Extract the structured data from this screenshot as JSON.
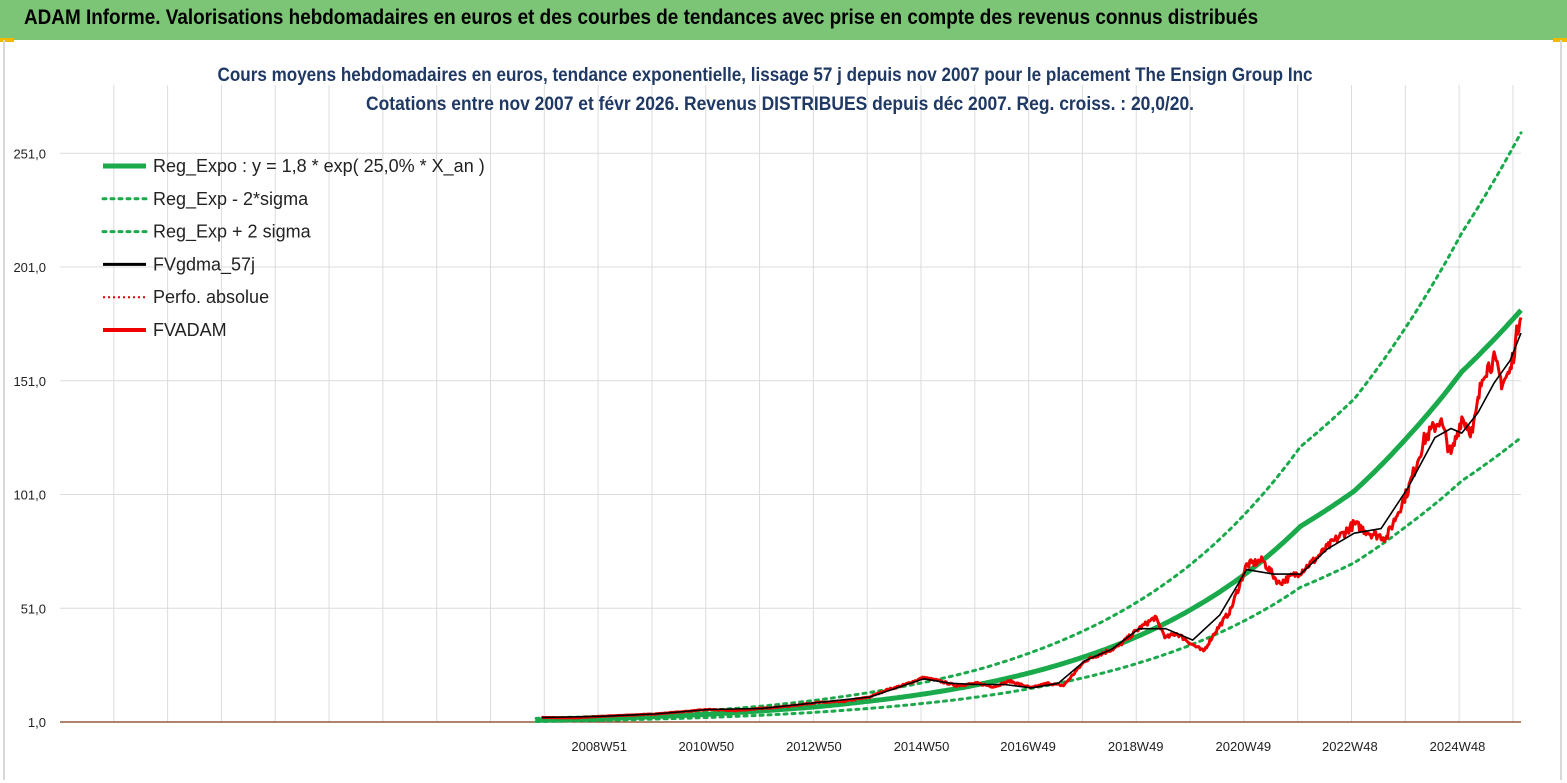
{
  "header": {
    "title": "ADAM Informe. Valorisations hebdomadaires en euros et des courbes de tendances avec prise en compte des revenus connus distribués"
  },
  "colors": {
    "banner": "#7cc576",
    "reg_expo": "#1aaa4b",
    "sigma": "#1aaa4b",
    "fvgdma": "#000000",
    "perfo": "#e00000",
    "fvadam": "#ee0000",
    "grid": "#dcdcdc",
    "title_text": "#1f3864"
  },
  "chart_data": {
    "type": "line",
    "title": "Cours moyens hebdomadaires en euros, tendance exponentielle, lissage 57 j depuis nov 2007 pour le placement The Ensign Group Inc",
    "subtitle": "Cotations entre nov 2007 et févr 2026. Revenus DISTRIBUES depuis déc 2007. Reg. croiss. : 20,0/20.",
    "xlabel": "",
    "ylabel": "",
    "x_range": [
      1998.95,
      2026.1
    ],
    "ylim": [
      1,
      281
    ],
    "y_ticks": [
      {
        "label": "1,0",
        "value": 1
      },
      {
        "label": "51,0",
        "value": 51
      },
      {
        "label": "101,0",
        "value": 101
      },
      {
        "label": "151,0",
        "value": 151
      },
      {
        "label": "201,0",
        "value": 201
      },
      {
        "label": "251,0",
        "value": 251
      }
    ],
    "x_ticks": [
      {
        "label": "2008W51",
        "value": 2008.97
      },
      {
        "label": "2010W50",
        "value": 2010.96
      },
      {
        "label": "2012W50",
        "value": 2012.96
      },
      {
        "label": "2014W50",
        "value": 2014.96
      },
      {
        "label": "2016W49",
        "value": 2016.94
      },
      {
        "label": "2018W49",
        "value": 2018.94
      },
      {
        "label": "2020W49",
        "value": 2020.94
      },
      {
        "label": "2022W48",
        "value": 2022.92
      },
      {
        "label": "2024W48",
        "value": 2024.92
      }
    ],
    "legend": [
      {
        "key": "reg_expo",
        "label": "Reg_Expo : y = 1,8 * exp( 25,0% *  X_an )"
      },
      {
        "key": "reg_minus",
        "label": "Reg_Exp - 2*sigma"
      },
      {
        "key": "reg_plus",
        "label": "Reg_Exp + 2 sigma"
      },
      {
        "key": "fvgdma",
        "label": "FVgdma_57j"
      },
      {
        "key": "perfo",
        "label": "Perfo. absolue"
      },
      {
        "key": "fvadam",
        "label": "FVADAM"
      }
    ],
    "legend_position": "top-left",
    "series": [
      {
        "key": "reg_expo",
        "name": "Reg_Expo",
        "x": [
          2007.8,
          2009,
          2010,
          2011,
          2012,
          2013,
          2014,
          2015,
          2016,
          2017,
          2018,
          2019,
          2020,
          2021,
          2022,
          2023,
          2024,
          2025,
          2026.1
        ],
        "y": [
          1.8,
          2.4,
          3.4,
          4.4,
          5.9,
          7.7,
          10.2,
          13.3,
          17.4,
          22.8,
          29.8,
          38.9,
          50.9,
          66.5,
          87.0,
          102.5,
          126.5,
          155.0,
          182.0
        ]
      },
      {
        "key": "reg_minus",
        "name": "Reg_Exp - 2*sigma",
        "x": [
          2007.8,
          2009,
          2010,
          2011,
          2012,
          2013,
          2014,
          2015,
          2016,
          2017,
          2018,
          2019,
          2020,
          2021,
          2022,
          2023,
          2024,
          2025,
          2026.1
        ],
        "y": [
          1.2,
          1.7,
          2.3,
          3.0,
          4.0,
          5.3,
          7.0,
          9.2,
          12.0,
          15.8,
          20.6,
          27.0,
          35.2,
          46.0,
          60.2,
          71.0,
          87.6,
          107.0,
          126.0
        ]
      },
      {
        "key": "reg_plus",
        "name": "Reg_Exp + 2 sigma",
        "x": [
          2007.8,
          2009,
          2010,
          2011,
          2012,
          2013,
          2014,
          2015,
          2016,
          2017,
          2018,
          2019,
          2020,
          2021,
          2022,
          2023,
          2024,
          2025,
          2026.1
        ],
        "y": [
          2.6,
          3.5,
          4.6,
          6.1,
          8.0,
          10.6,
          14.0,
          18.4,
          24.0,
          31.6,
          41.4,
          54.2,
          71.0,
          93.2,
          122.0,
          143.0,
          176.0,
          216.0,
          260.0
        ]
      },
      {
        "key": "fvgdma",
        "name": "FVgdma_57j",
        "x": [
          2007.9,
          2009,
          2010,
          2011,
          2012,
          2013,
          2014,
          2014.5,
          2015,
          2015.5,
          2016,
          2016.5,
          2017,
          2017.5,
          2018,
          2018.5,
          2019,
          2019.5,
          2020,
          2020.5,
          2021,
          2021.5,
          2022,
          2022.5,
          2023,
          2023.5,
          2024,
          2024.5,
          2024.8,
          2025,
          2025.3,
          2025.6,
          2025.9,
          2026.1
        ],
        "y": [
          3.0,
          3.5,
          4.5,
          6.5,
          7.0,
          9.5,
          12.0,
          16.0,
          20.0,
          18.0,
          17.5,
          17.5,
          16.0,
          18.0,
          28.0,
          33.0,
          42.0,
          42.0,
          37.0,
          48.0,
          68.0,
          66.0,
          66.0,
          77.0,
          84.0,
          86.0,
          104.0,
          126.0,
          130.0,
          128.0,
          137.0,
          150.0,
          160.0,
          172.0
        ]
      },
      {
        "key": "perfo",
        "name": "Perfo. absolue",
        "x": [
          1998.95,
          2026.1
        ],
        "y": [
          1.0,
          1.0
        ]
      },
      {
        "key": "fvadam",
        "name": "FVADAM",
        "x": [
          2007.9,
          2008.5,
          2009,
          2009.5,
          2010,
          2010.5,
          2011,
          2011.5,
          2012,
          2012.5,
          2013,
          2013.5,
          2014,
          2014.3,
          2014.6,
          2015,
          2015.3,
          2015.6,
          2016,
          2016.3,
          2016.6,
          2017,
          2017.3,
          2017.6,
          2018,
          2018.3,
          2018.6,
          2019,
          2019.3,
          2019.5,
          2019.7,
          2020,
          2020.2,
          2020.4,
          2020.7,
          2021,
          2021.3,
          2021.6,
          2022,
          2022.3,
          2022.6,
          2023,
          2023.3,
          2023.6,
          2024,
          2024.3,
          2024.6,
          2024.8,
          2025.0,
          2025.2,
          2025.4,
          2025.6,
          2025.75,
          2025.9,
          2026.0,
          2026.1
        ],
        "y": [
          3.0,
          2.8,
          3.5,
          4.0,
          4.5,
          5.5,
          6.5,
          6.0,
          7.0,
          8.0,
          9.5,
          10.0,
          12.0,
          15.0,
          17.0,
          20.5,
          19.0,
          17.0,
          18.0,
          16.5,
          19.0,
          16.0,
          18.0,
          17.0,
          28.0,
          31.0,
          34.0,
          42.0,
          47.0,
          38.0,
          40.0,
          35.0,
          32.0,
          40.0,
          50.0,
          70.0,
          72.0,
          62.0,
          67.0,
          73.0,
          80.0,
          88.0,
          84.0,
          82.0,
          103.0,
          125.0,
          134.0,
          118.0,
          135.0,
          128.0,
          155.0,
          160.0,
          150.0,
          155.0,
          168.0,
          183.0
        ]
      }
    ]
  }
}
